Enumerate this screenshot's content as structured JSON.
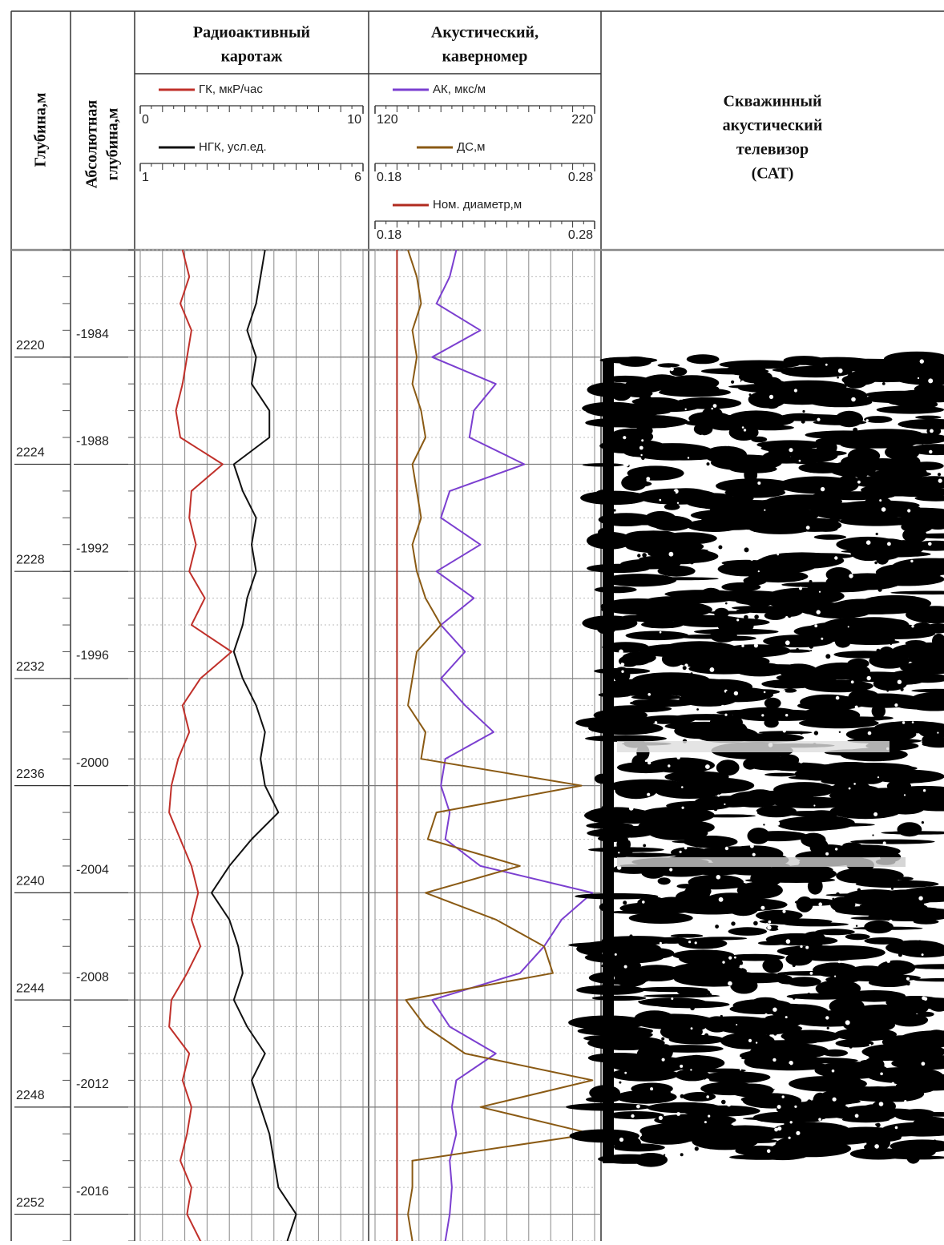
{
  "chart_data": {
    "type": "well-log",
    "depth_title": "Глубина,м",
    "abs_depth_title": [
      "Абсолютная",
      "глубина,м"
    ],
    "ylim": [
      2216,
      2253
    ],
    "yticks": [
      2220,
      2224,
      2228,
      2232,
      2236,
      2240,
      2244,
      2248,
      2252
    ],
    "y2lim": [
      -1980,
      -2017
    ],
    "y2ticks": [
      -1984,
      -1988,
      -1992,
      -1996,
      -2000,
      -2004,
      -2008,
      -2012,
      -2016
    ],
    "depth": [
      2216,
      2217,
      2218,
      2219,
      2220,
      2221,
      2222,
      2223,
      2224,
      2225,
      2226,
      2227,
      2228,
      2229,
      2230,
      2231,
      2232,
      2233,
      2234,
      2235,
      2236,
      2237,
      2238,
      2239,
      2240,
      2241,
      2242,
      2243,
      2244,
      2245,
      2246,
      2247,
      2248,
      2249,
      2250,
      2251,
      2252,
      2253
    ],
    "tracks": [
      {
        "title": [
          "Радиоактивный",
          "каротаж"
        ],
        "series": [
          {
            "name": "ГК, мкР/час",
            "color": "#c0302a",
            "xlim": [
              0,
              10
            ],
            "values": [
              1.9,
              2.2,
              1.8,
              2.3,
              2.1,
              1.9,
              1.6,
              1.8,
              3.7,
              2.3,
              2.2,
              2.5,
              2.2,
              2.9,
              2.3,
              4.1,
              2.7,
              1.9,
              2.2,
              1.7,
              1.4,
              1.3,
              1.8,
              2.3,
              2.6,
              2.3,
              2.7,
              2.1,
              1.4,
              1.3,
              2.2,
              1.9,
              2.3,
              2.1,
              1.8,
              2.3,
              2.1,
              2.7
            ]
          },
          {
            "name": "НГК, усл.ед.",
            "color": "#111111",
            "xlim": [
              1,
              6
            ],
            "values": [
              3.8,
              3.7,
              3.6,
              3.4,
              3.6,
              3.5,
              3.9,
              3.9,
              3.1,
              3.3,
              3.6,
              3.5,
              3.6,
              3.4,
              3.3,
              3.1,
              3.3,
              3.6,
              3.8,
              3.7,
              3.8,
              4.1,
              3.5,
              3.0,
              2.6,
              3.0,
              3.2,
              3.3,
              3.1,
              3.4,
              3.8,
              3.5,
              3.7,
              3.9,
              4.0,
              4.1,
              4.5,
              4.3
            ]
          }
        ]
      },
      {
        "title": [
          "Акустический,",
          "каверномер"
        ],
        "series": [
          {
            "name": "АК, мкс/м",
            "color": "#7b3fd0",
            "xlim": [
              120,
              220
            ],
            "values": [
              157,
              154,
              148,
              168,
              146,
              175,
              165,
              163,
              188,
              154,
              150,
              168,
              148,
              165,
              150,
              161,
              150,
              161,
              174,
              152,
              150,
              154,
              152,
              168,
              219,
              205,
              197,
              186,
              146,
              154,
              175,
              157,
              155,
              157,
              154,
              155,
              154,
              152
            ]
          },
          {
            "name": "ДС,м",
            "color": "#8a5a14",
            "xlim": [
              0.18,
              0.28
            ],
            "values": [
              0.195,
              0.199,
              0.201,
              0.197,
              0.199,
              0.197,
              0.201,
              0.203,
              0.197,
              0.199,
              0.201,
              0.197,
              0.199,
              0.203,
              0.21,
              0.199,
              0.197,
              0.195,
              0.203,
              0.201,
              0.274,
              0.208,
              0.204,
              0.246,
              0.203,
              0.235,
              0.257,
              0.261,
              0.194,
              0.203,
              0.221,
              0.279,
              0.228,
              0.279,
              0.197,
              0.197,
              0.195,
              0.197
            ]
          },
          {
            "name": "Ном. диаметр,м",
            "color": "#b02a1e",
            "xlim": [
              0.18,
              0.28
            ],
            "depth": [
              2216,
              2253
            ],
            "values": [
              0.19,
              0.19
            ]
          }
        ]
      }
    ],
    "image_track": {
      "title": [
        "Скважинный",
        "акустический",
        "телевизор",
        "(САТ)"
      ]
    }
  }
}
